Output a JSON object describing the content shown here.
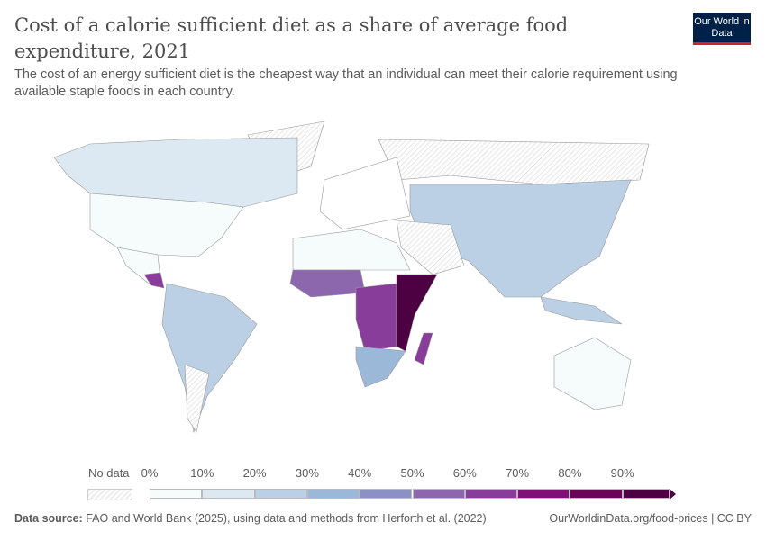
{
  "header": {
    "title": "Cost of a calorie sufficient diet as a share of average food expenditure, 2021",
    "subtitle": "The cost of an energy sufficient diet is the cheapest way that an individual can meet their calorie requirement using available staple foods in each country.",
    "logo": "Our World in Data"
  },
  "legend": {
    "no_data": "No data",
    "ticks": [
      "0%",
      "10%",
      "20%",
      "30%",
      "40%",
      "50%",
      "60%",
      "70%",
      "80%",
      "90%"
    ],
    "colors": [
      "#f6fbfc",
      "#dce9f2",
      "#bbd0e4",
      "#9cb8d8",
      "#8a91c5",
      "#8d67ae",
      "#893d9a",
      "#7f1078",
      "#680558",
      "#4d0042"
    ]
  },
  "footer": {
    "source_label": "Data source:",
    "source_text": "FAO and World Bank (2025), using data and methods from Herforth et al. (2022)",
    "url": "OurWorldinData.org/food-prices | CC BY"
  }
}
